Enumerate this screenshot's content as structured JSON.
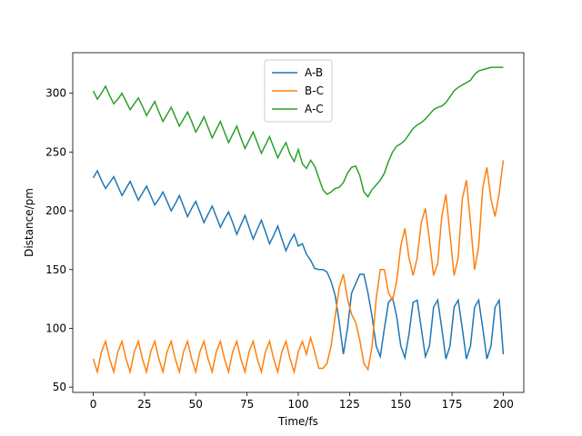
{
  "chart_data": {
    "type": "line",
    "xlabel": "Time/fs",
    "ylabel": "Distance/pm",
    "x": [
      0,
      2,
      4,
      6,
      8,
      10,
      12,
      14,
      16,
      18,
      20,
      22,
      24,
      26,
      28,
      30,
      32,
      34,
      36,
      38,
      40,
      42,
      44,
      46,
      48,
      50,
      52,
      54,
      56,
      58,
      60,
      62,
      64,
      66,
      68,
      70,
      72,
      74,
      76,
      78,
      80,
      82,
      84,
      86,
      88,
      90,
      92,
      94,
      96,
      98,
      100,
      102,
      104,
      106,
      108,
      110,
      112,
      114,
      116,
      118,
      120,
      122,
      124,
      126,
      128,
      130,
      132,
      134,
      136,
      138,
      140,
      142,
      144,
      146,
      148,
      150,
      152,
      154,
      156,
      158,
      160,
      162,
      164,
      166,
      168,
      170,
      172,
      174,
      176,
      178,
      180,
      182,
      184,
      186,
      188,
      190,
      192,
      194,
      196,
      198,
      200
    ],
    "series": [
      {
        "name": "A-B",
        "color": "#1f77b4",
        "values": [
          228,
          234,
          226,
          219,
          224,
          229,
          221,
          213,
          219,
          225,
          217,
          209,
          215,
          221,
          213,
          205,
          210,
          216,
          208,
          200,
          206,
          213,
          204,
          195,
          202,
          208,
          199,
          190,
          197,
          204,
          195,
          186,
          193,
          199,
          190,
          180,
          188,
          196,
          186,
          176,
          184,
          192,
          182,
          172,
          179,
          187,
          176,
          166,
          174,
          180,
          170,
          172,
          163,
          158,
          151,
          150,
          150,
          148,
          140,
          128,
          105,
          78,
          100,
          130,
          138,
          146,
          146,
          130,
          110,
          85,
          76,
          100,
          122,
          126,
          110,
          85,
          75,
          95,
          122,
          124,
          100,
          76,
          85,
          118,
          124,
          100,
          74,
          85,
          118,
          124,
          100,
          74,
          85,
          118,
          124,
          100,
          74,
          85,
          118,
          124,
          78
        ]
      },
      {
        "name": "B-C",
        "color": "#ff7f0e",
        "values": [
          74,
          63,
          80,
          89,
          74,
          63,
          80,
          89,
          74,
          63,
          80,
          89,
          74,
          63,
          80,
          89,
          74,
          63,
          80,
          89,
          74,
          63,
          80,
          89,
          74,
          63,
          80,
          89,
          74,
          63,
          80,
          89,
          74,
          63,
          80,
          89,
          74,
          63,
          80,
          89,
          74,
          63,
          80,
          89,
          74,
          63,
          80,
          89,
          74,
          63,
          80,
          89,
          78,
          92,
          80,
          66,
          66,
          70,
          85,
          110,
          135,
          146,
          125,
          112,
          105,
          90,
          70,
          65,
          85,
          125,
          150,
          150,
          130,
          124,
          140,
          170,
          185,
          160,
          145,
          160,
          190,
          202,
          175,
          145,
          155,
          195,
          214,
          180,
          145,
          160,
          210,
          226,
          190,
          150,
          170,
          220,
          237,
          210,
          195,
          215,
          243
        ]
      },
      {
        "name": "A-C",
        "color": "#2ca02c",
        "values": [
          302,
          295,
          300,
          306,
          298,
          291,
          295,
          300,
          293,
          286,
          291,
          296,
          289,
          281,
          287,
          293,
          284,
          276,
          282,
          288,
          280,
          272,
          278,
          284,
          276,
          267,
          273,
          280,
          271,
          262,
          269,
          276,
          267,
          258,
          265,
          272,
          262,
          253,
          260,
          267,
          258,
          249,
          256,
          263,
          254,
          245,
          252,
          258,
          248,
          242,
          252,
          240,
          236,
          243,
          238,
          228,
          218,
          214,
          216,
          219,
          220,
          224,
          232,
          237,
          238,
          230,
          216,
          212,
          218,
          222,
          226,
          232,
          242,
          250,
          255,
          257,
          260,
          265,
          270,
          273,
          275,
          278,
          282,
          286,
          288,
          289,
          292,
          297,
          302,
          305,
          307,
          309,
          311,
          316,
          319,
          320,
          321,
          322,
          322,
          322,
          322
        ]
      }
    ],
    "xlim": [
      -10,
      210
    ],
    "xticks": [
      0,
      25,
      50,
      75,
      100,
      125,
      150,
      175,
      200
    ],
    "ylim": [
      45.5,
      334.5
    ],
    "yticks": [
      50,
      100,
      150,
      200,
      250,
      300
    ],
    "legend": "upper center"
  }
}
